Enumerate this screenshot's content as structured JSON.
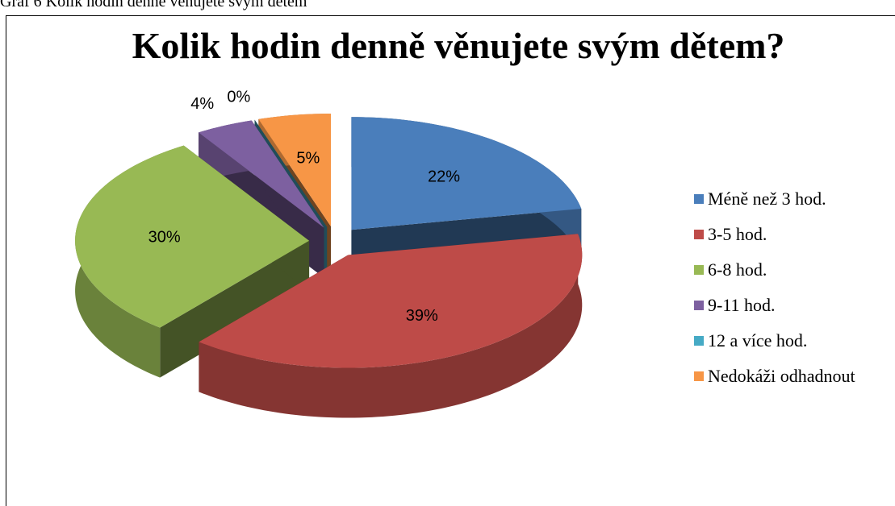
{
  "caption": "Graf 6 Kolik hodin denně věnujete svým dětem",
  "chart_data": {
    "type": "pie3d",
    "title": "Kolik hodin denně věnujete svým dětem?",
    "categories": [
      "Méně než 3 hod.",
      "3-5 hod.",
      "6-8 hod.",
      "9-11 hod.",
      "12 a více hod.",
      "Nedokáži odhadnout"
    ],
    "values": [
      22,
      39,
      30,
      4,
      0,
      5
    ],
    "value_labels": [
      "22%",
      "39%",
      "30%",
      "4%",
      "0%",
      "5%"
    ],
    "colors": [
      "#4a7ebb",
      "#be4b48",
      "#98b954",
      "#7d60a0",
      "#46aac5",
      "#f79646"
    ],
    "legend": "right"
  }
}
